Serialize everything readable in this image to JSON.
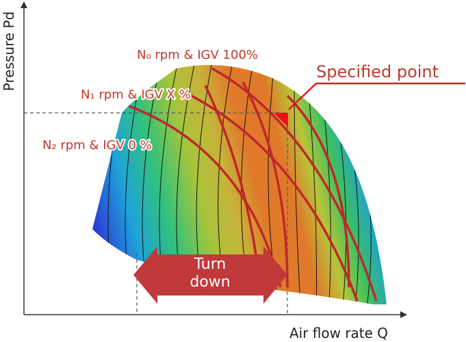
{
  "axes": {
    "y_label": "Pressure Pd",
    "x_label": "Air flow rate Q"
  },
  "curves": [
    {
      "label": "N₀ rpm & IGV 100%"
    },
    {
      "label": "N₁ rpm & IGV X %"
    },
    {
      "label": "N₂ rpm & IGV 0 %"
    }
  ],
  "specified_point": "Specified point",
  "turn_down": [
    "Turn",
    "down"
  ]
}
